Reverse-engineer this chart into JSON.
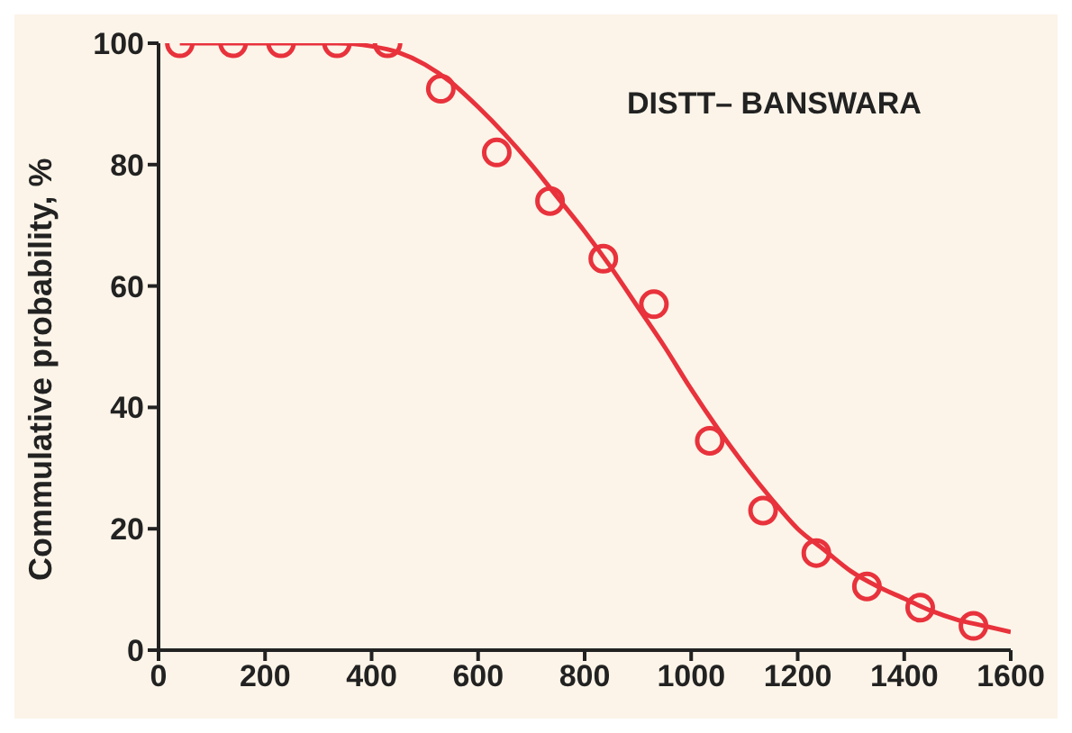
{
  "chart_data": {
    "type": "scatter",
    "ylabel": "Commulative probability, %",
    "annotations": [
      "DISTT– BANSWARA"
    ],
    "xlim": [
      0,
      1600
    ],
    "xticks": [
      0,
      200,
      400,
      600,
      800,
      1000,
      1200,
      1400,
      1600
    ],
    "ylim": [
      0,
      100
    ],
    "yticks": [
      0,
      20,
      40,
      60,
      80,
      100
    ],
    "series": [
      {
        "marker": "circle",
        "color": "#e8323c",
        "x": [
          40,
          140,
          230,
          335,
          430,
          530,
          635,
          735,
          835,
          930,
          1035,
          1135,
          1235,
          1330,
          1430,
          1530
        ],
        "values": [
          100,
          100,
          100,
          100,
          100,
          92.5,
          82,
          74,
          64.5,
          57,
          34.5,
          23,
          16,
          10.5,
          7,
          4
        ]
      },
      {
        "type": "line",
        "marker": "none",
        "line_style": "solid",
        "color": "#e8323c",
        "x": [
          40,
          140,
          230,
          335,
          400,
          450,
          500,
          550,
          600,
          650,
          700,
          750,
          800,
          850,
          900,
          950,
          1000,
          1050,
          1100,
          1150,
          1200,
          1250,
          1300,
          1350,
          1400,
          1450,
          1500,
          1550,
          1600
        ],
        "values": [
          100,
          100,
          100,
          100,
          99.5,
          98.5,
          96.5,
          93.5,
          89.5,
          85,
          80,
          74.5,
          69,
          63,
          56.5,
          50,
          43,
          36.5,
          30.5,
          25,
          20,
          16.5,
          13,
          10.5,
          8.5,
          6.5,
          5,
          4,
          3
        ]
      }
    ]
  }
}
